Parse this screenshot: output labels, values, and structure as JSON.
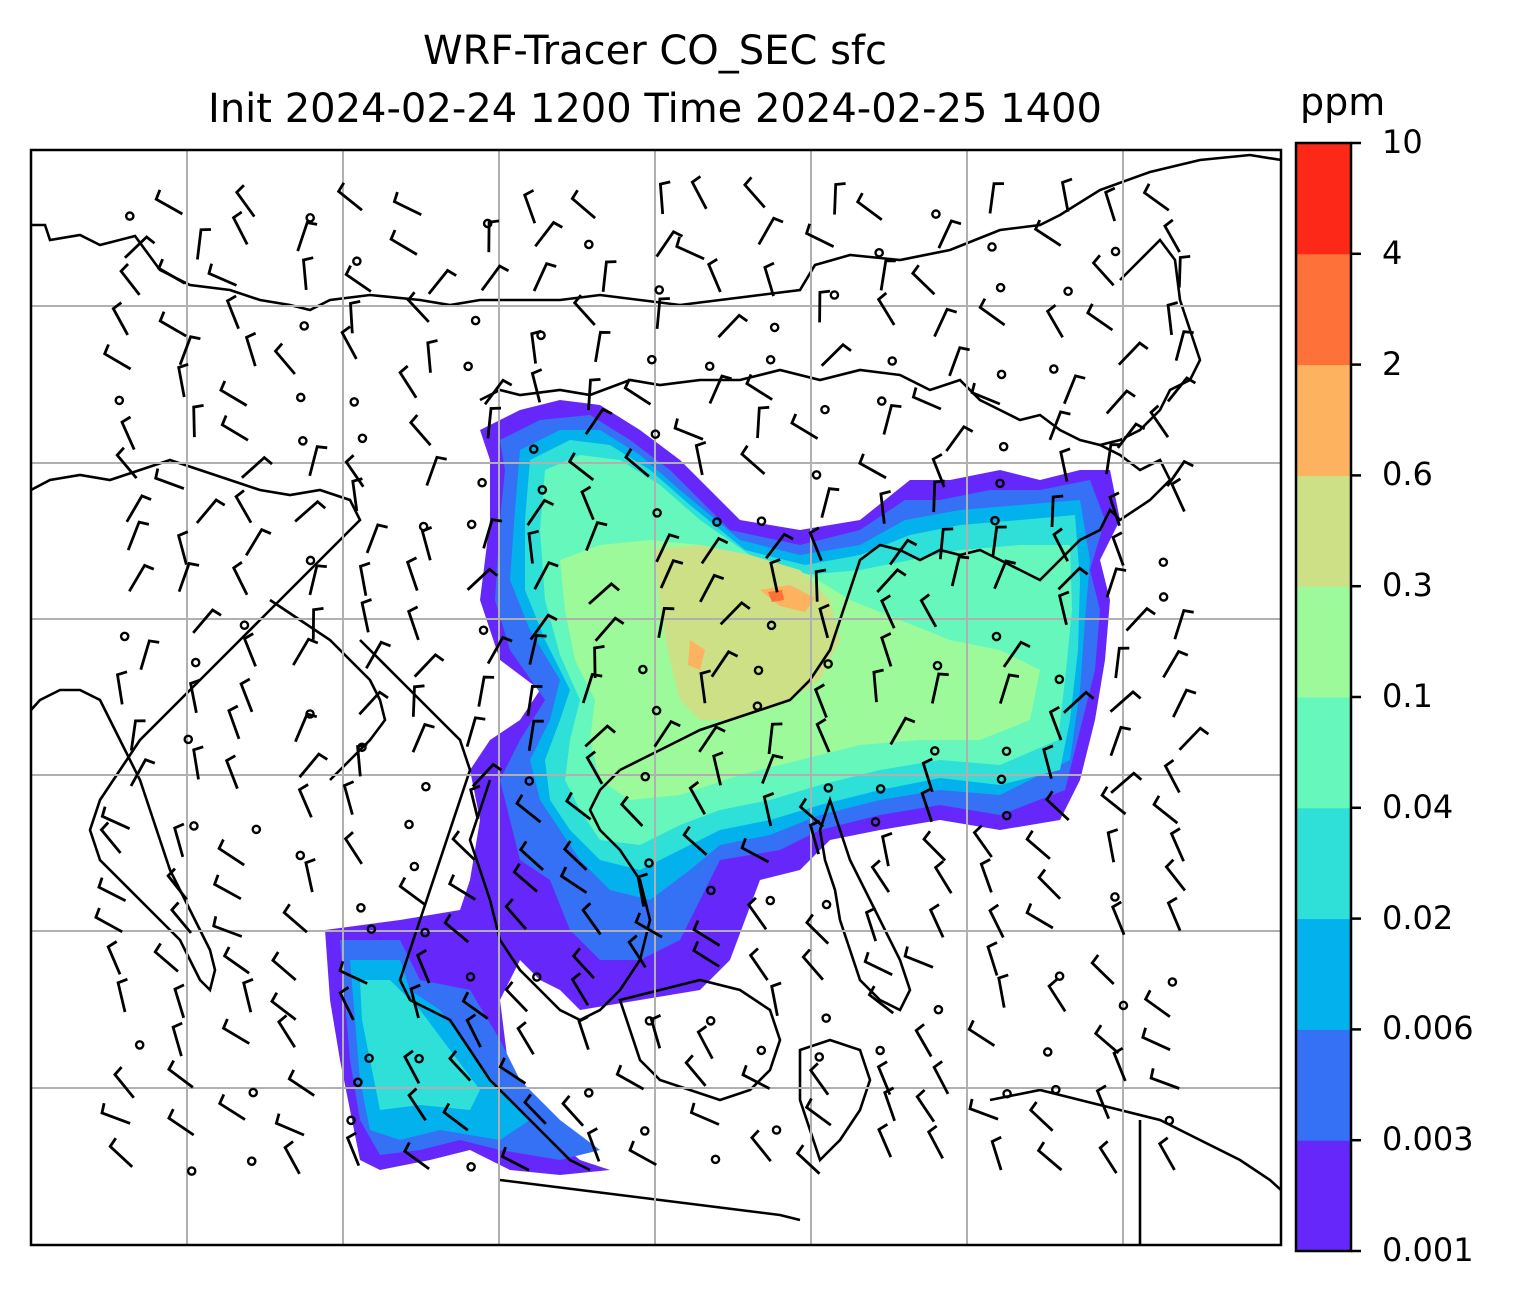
{
  "title": {
    "line1": "WRF-Tracer CO_SEC sfc",
    "line2": "Init 2024-02-24 1200 Time 2024-02-25 1400"
  },
  "colorbar": {
    "unit": "ppm",
    "levels": [
      "0.001",
      "0.003",
      "0.006",
      "0.02",
      "0.04",
      "0.1",
      "0.3",
      "0.6",
      "2",
      "4",
      "10"
    ],
    "colors": [
      "#6628fa",
      "#3471f5",
      "#03b2ec",
      "#2ee0d8",
      "#66f7bc",
      "#9cfa9a",
      "#cde086",
      "#fcb25e",
      "#fe7138",
      "#fe2818"
    ]
  },
  "map": {
    "variable": "CO_SEC surface tracer concentration with wind barbs",
    "gridlines": true,
    "projection": "regional map, South/East Asia"
  }
}
